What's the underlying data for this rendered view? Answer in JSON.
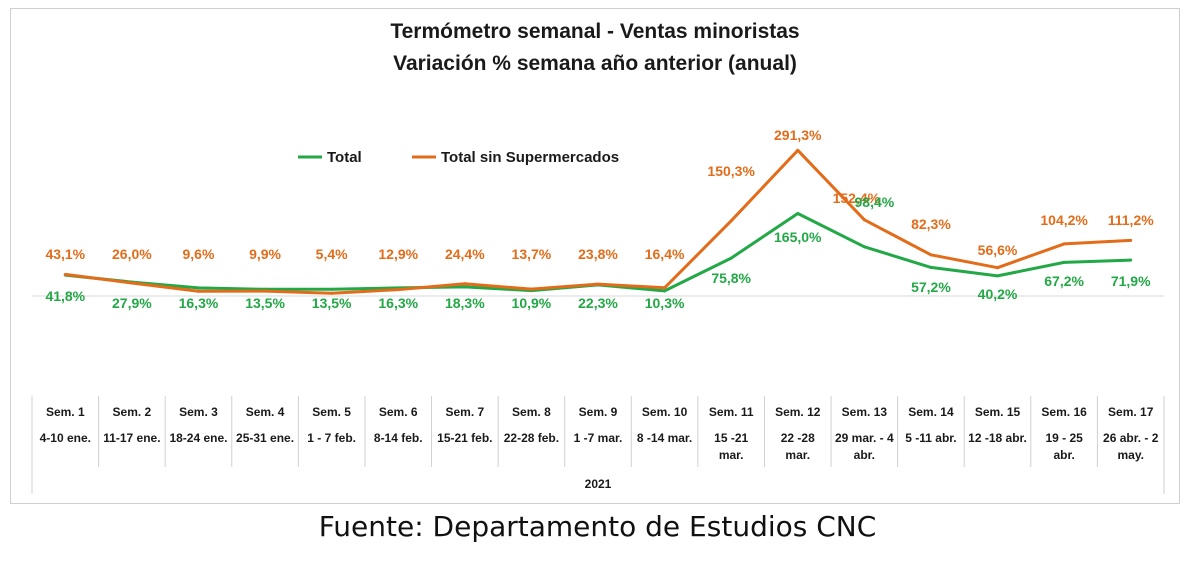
{
  "chart_data": {
    "type": "line",
    "title": "Termómetro semanal - Ventas minoristas",
    "subtitle": "Variación % semana año anterior (anual)",
    "weeks": [
      "Sem. 1",
      "Sem. 2",
      "Sem. 3",
      "Sem. 4",
      "Sem. 5",
      "Sem. 6",
      "Sem. 7",
      "Sem. 8",
      "Sem. 9",
      "Sem. 10",
      "Sem. 11",
      "Sem. 12",
      "Sem. 13",
      "Sem. 14",
      "Sem. 15",
      "Sem. 16",
      "Sem. 17"
    ],
    "date_ranges": [
      [
        "4-10 ene."
      ],
      [
        "11-17 ene."
      ],
      [
        "18-24 ene."
      ],
      [
        "25-31 ene."
      ],
      [
        "1 - 7 feb."
      ],
      [
        "8-14 feb."
      ],
      [
        "15-21 feb."
      ],
      [
        "22-28 feb."
      ],
      [
        "1 -7 mar."
      ],
      [
        "8 -14 mar."
      ],
      [
        "15 -21",
        "mar."
      ],
      [
        "22 -28",
        "mar."
      ],
      [
        "29 mar. - 4",
        "abr."
      ],
      [
        "5 -11 abr."
      ],
      [
        "12 -18 abr."
      ],
      [
        "19 - 25",
        "abr."
      ],
      [
        "26 abr. - 2",
        "may."
      ]
    ],
    "year_label": "2021",
    "series": [
      {
        "name": "Total",
        "color": "#22a846",
        "values": [
          41.8,
          27.9,
          16.3,
          13.5,
          13.5,
          16.3,
          18.3,
          10.9,
          22.3,
          10.3,
          75.8,
          165.0,
          98.4,
          57.2,
          40.2,
          67.2,
          71.9
        ],
        "labels": [
          "41,8%",
          "27,9%",
          "16,3%",
          "13,5%",
          "13,5%",
          "16,3%",
          "18,3%",
          "10,9%",
          "22,3%",
          "10,3%",
          "75,8%",
          "165,0%",
          "98,4%",
          "57,2%",
          "40,2%",
          "67,2%",
          "71,9%"
        ]
      },
      {
        "name": "Total sin Supermercados",
        "color": "#e36c1a",
        "values": [
          43.1,
          26.0,
          9.6,
          9.9,
          5.4,
          12.9,
          24.4,
          13.7,
          23.8,
          16.4,
          150.3,
          291.3,
          152.4,
          82.3,
          56.6,
          104.2,
          111.2
        ],
        "labels": [
          "43,1%",
          "26,0%",
          "9,6%",
          "9,9%",
          "5,4%",
          "12,9%",
          "24,4%",
          "13,7%",
          "23,8%",
          "16,4%",
          "150,3%",
          "291,3%",
          "152,4%",
          "82,3%",
          "56,6%",
          "104,2%",
          "111,2%"
        ]
      }
    ],
    "legend_position": "top",
    "grid": false
  },
  "source": "Fuente: Departamento de Estudios CNC"
}
